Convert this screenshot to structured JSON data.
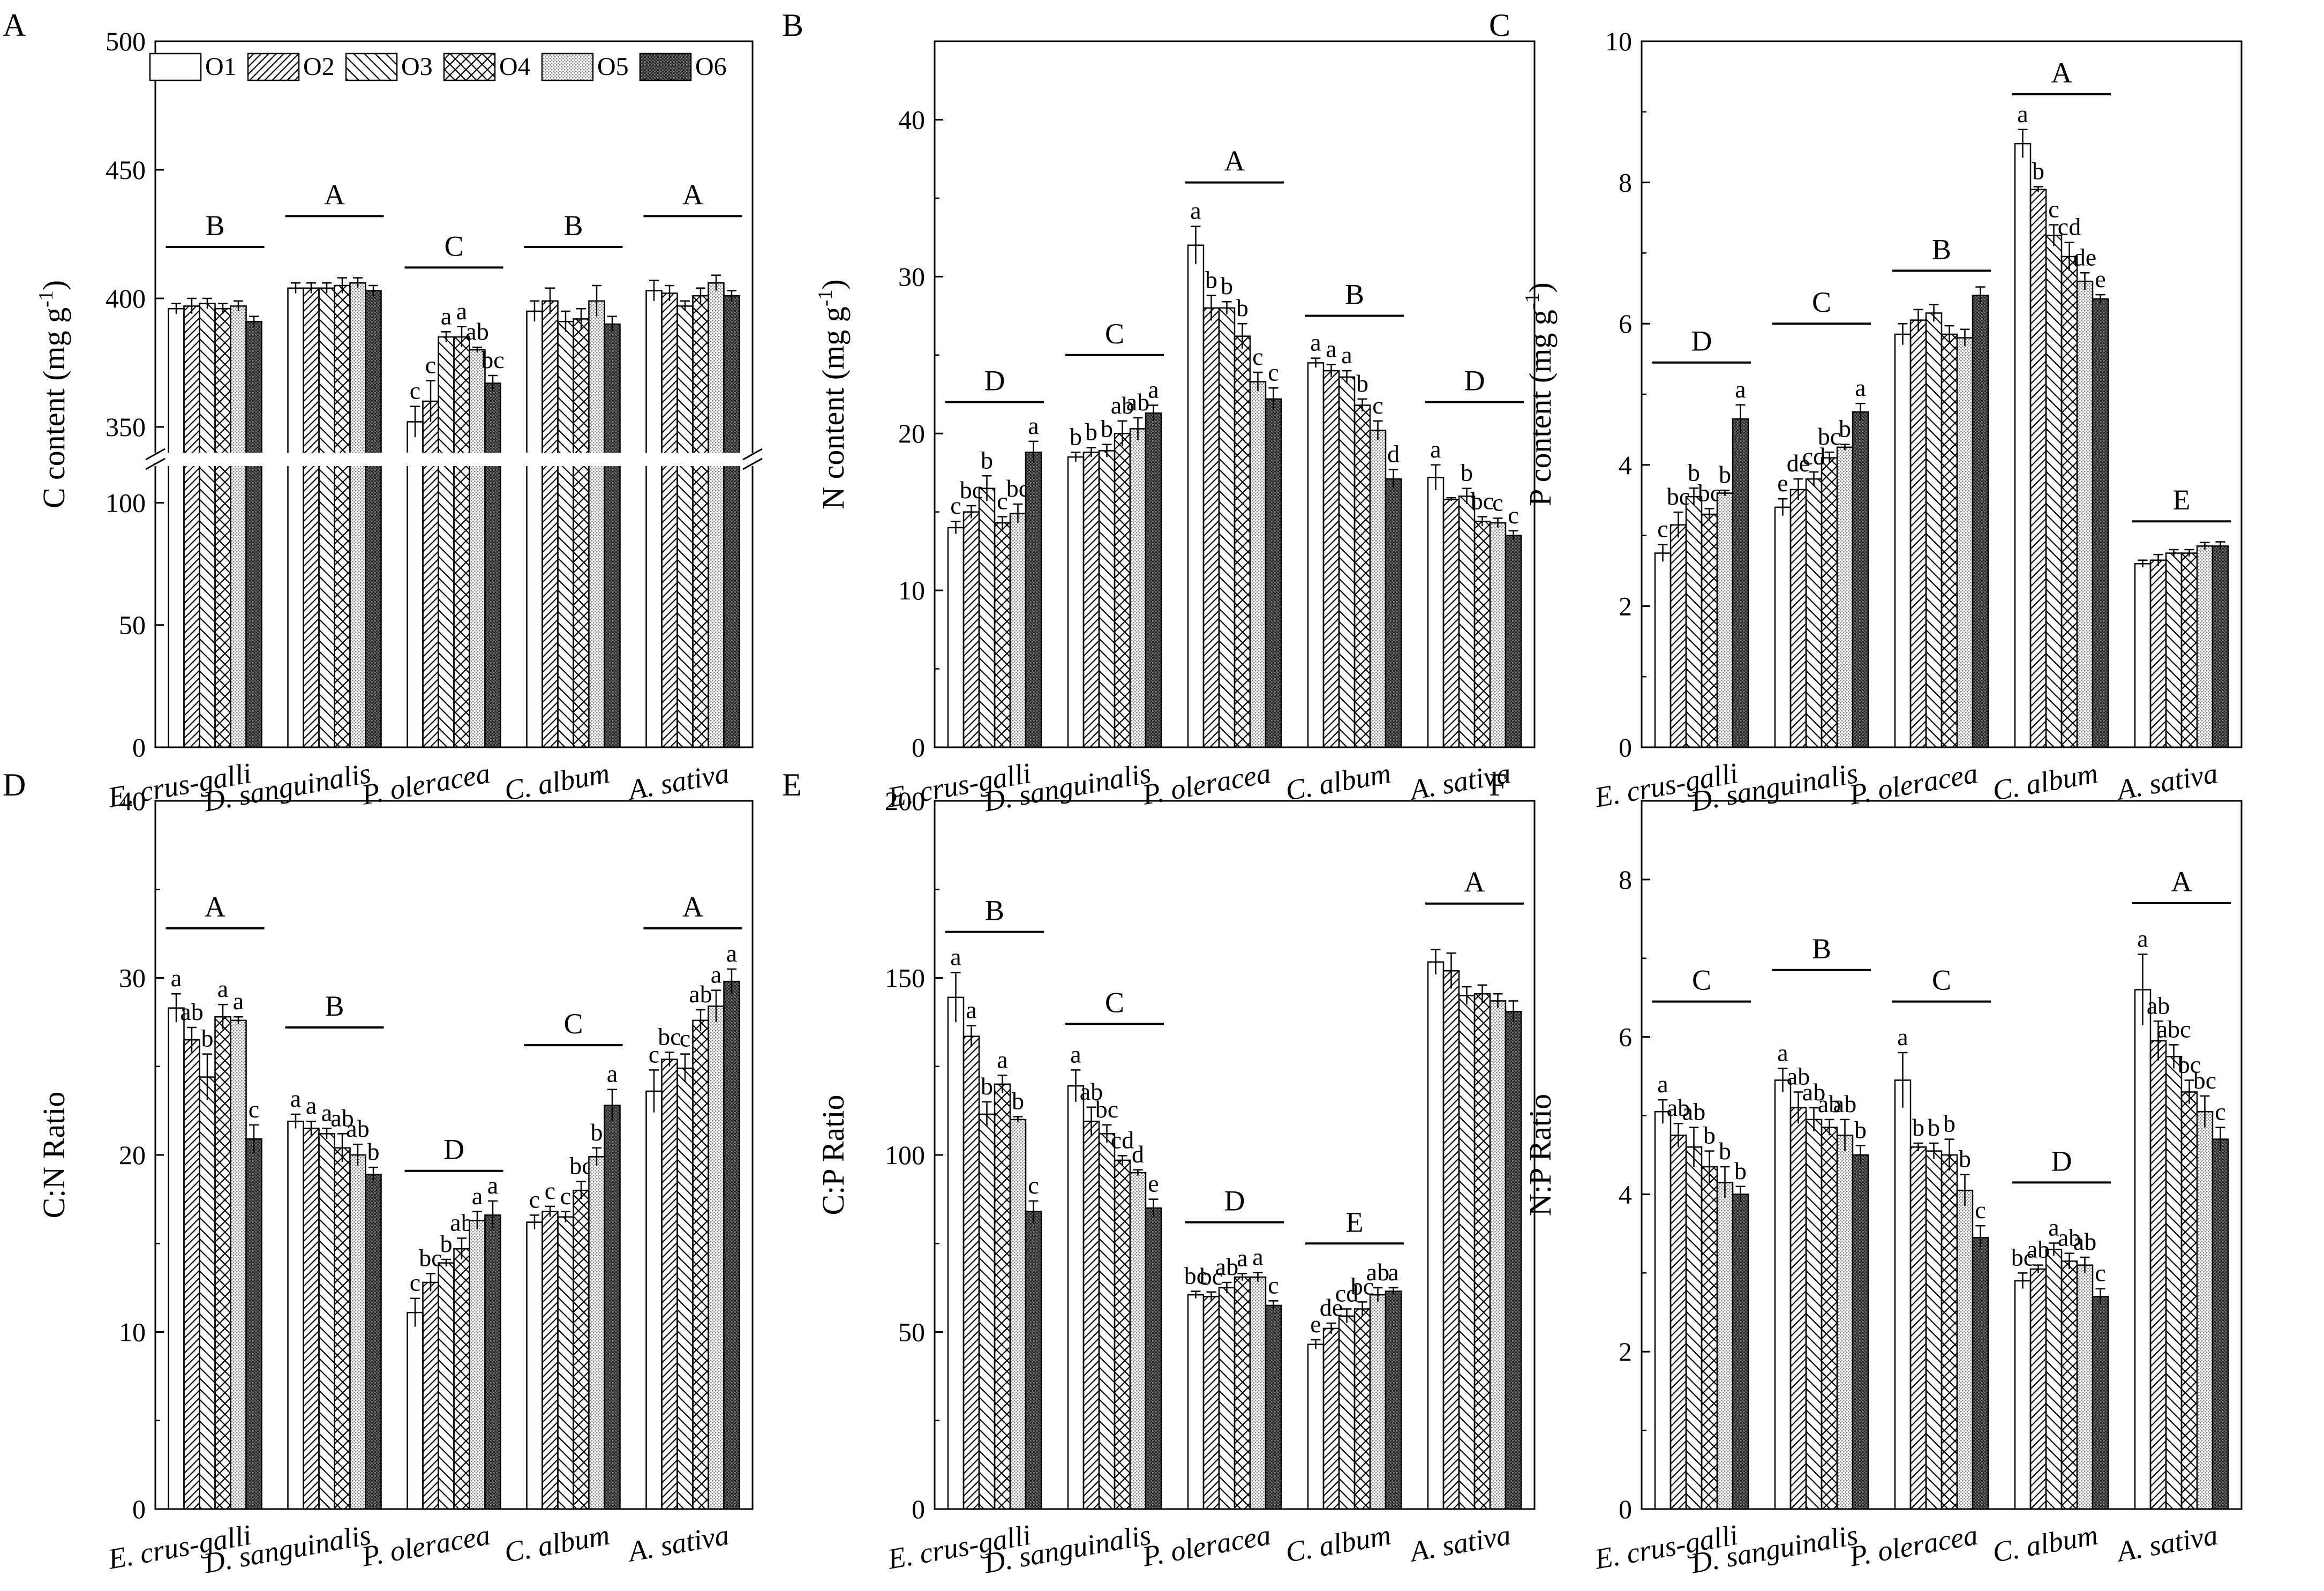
{
  "legend": [
    {
      "name": "O1",
      "pattern": "empty"
    },
    {
      "name": "O2",
      "pattern": "fine-diagonal"
    },
    {
      "name": "O3",
      "pattern": "back-diagonal"
    },
    {
      "name": "O4",
      "pattern": "crosshatch"
    },
    {
      "name": "O5",
      "pattern": "light-dots"
    },
    {
      "name": "O6",
      "pattern": "dark-dense"
    }
  ],
  "chart_data": [
    {
      "type": "bar",
      "panel": "A",
      "ylabel": "C content (mg g-1)",
      "ylabel_main": "C content (mg g",
      "ylabel_sup": "-1",
      "ylabel_end": ")",
      "categories": [
        "E. crus-galli",
        "D. sanguinalis",
        "P. oleracea",
        "C. album",
        "A. sativa"
      ],
      "broken_axis": true,
      "ylim": [
        0,
        500
      ],
      "yticks_lower": [
        0,
        50,
        100
      ],
      "yticks_upper": [
        350,
        400,
        450,
        500
      ],
      "values": [
        [
          396,
          397,
          398,
          396,
          397,
          391
        ],
        [
          404,
          404,
          404,
          405,
          406,
          403
        ],
        [
          352,
          360,
          385,
          385,
          380,
          367
        ],
        [
          395,
          399,
          391,
          392,
          399,
          390
        ],
        [
          403,
          402,
          397,
          401,
          406,
          401
        ]
      ],
      "errors": [
        [
          2,
          3,
          2,
          2,
          2,
          2
        ],
        [
          2,
          2,
          2,
          3,
          2,
          2
        ],
        [
          6,
          8,
          2,
          4,
          1,
          3
        ],
        [
          4,
          5,
          4,
          4,
          6,
          3
        ],
        [
          4,
          3,
          2,
          3,
          3,
          2
        ]
      ],
      "letters": [
        [
          "",
          "",
          "",
          "",
          "",
          ""
        ],
        [
          "",
          "",
          "",
          "",
          "",
          ""
        ],
        [
          "c",
          "c",
          "a",
          "a",
          "ab",
          "bc"
        ],
        [
          "",
          "",
          "",
          "",
          "",
          ""
        ],
        [
          "",
          "",
          "",
          "",
          "",
          ""
        ]
      ],
      "groups": [
        "B",
        "A",
        "C",
        "B",
        "A"
      ],
      "group_y": [
        420,
        432,
        412,
        420,
        432
      ]
    },
    {
      "type": "bar",
      "panel": "B",
      "ylabel": "N content (mg g-1)",
      "ylabel_main": "N content (mg g",
      "ylabel_sup": "-1",
      "ylabel_end": ")",
      "categories": [
        "E. crus-galli",
        "D. sanguinalis",
        "P. oleracea",
        "C. album",
        "A. sativa"
      ],
      "ylim": [
        0,
        45
      ],
      "yticks": [
        0,
        10,
        20,
        30,
        40
      ],
      "values": [
        [
          14.0,
          15.0,
          16.5,
          14.3,
          14.9,
          18.8
        ],
        [
          18.5,
          18.8,
          18.9,
          20.0,
          20.3,
          21.3
        ],
        [
          32.0,
          28.0,
          28.0,
          26.2,
          23.3,
          22.2
        ],
        [
          24.5,
          24.0,
          23.6,
          21.8,
          20.2,
          17.1
        ],
        [
          17.2,
          15.8,
          16.0,
          14.4,
          14.3,
          13.5
        ]
      ],
      "errors": [
        [
          0.4,
          0.4,
          0.8,
          0.4,
          0.6,
          0.7
        ],
        [
          0.3,
          0.3,
          0.4,
          0.8,
          0.7,
          0.5
        ],
        [
          1.2,
          0.8,
          0.4,
          0.8,
          0.6,
          0.7
        ],
        [
          0.3,
          0.4,
          0.4,
          0.4,
          0.6,
          0.6
        ],
        [
          0.8,
          0.1,
          0.5,
          0.3,
          0.3,
          0.3
        ]
      ],
      "letters": [
        [
          "c",
          "bc",
          "b",
          "c",
          "bc",
          "a"
        ],
        [
          "b",
          "b",
          "b",
          "ab",
          "ab",
          "a"
        ],
        [
          "a",
          "b",
          "b",
          "b",
          "c",
          "c"
        ],
        [
          "a",
          "a",
          "a",
          "b",
          "c",
          "d"
        ],
        [
          "a",
          "",
          "b",
          "bc",
          "c",
          "c"
        ]
      ],
      "groups": [
        "D",
        "C",
        "A",
        "B",
        "D"
      ],
      "group_y": [
        22,
        25,
        36,
        27.5,
        22
      ]
    },
    {
      "type": "bar",
      "panel": "C",
      "ylabel": "P content (mg g-1)",
      "ylabel_main": "P content (mg g",
      "ylabel_sup": "-1",
      "ylabel_end": ")",
      "categories": [
        "E. crus-galli",
        "D. sanguinalis",
        "P. oleracea",
        "C. album",
        "A. sativa"
      ],
      "ylim": [
        0,
        10
      ],
      "yticks": [
        0,
        2,
        4,
        6,
        8,
        10
      ],
      "values": [
        [
          2.75,
          3.15,
          3.55,
          3.3,
          3.6,
          4.65
        ],
        [
          3.4,
          3.65,
          3.8,
          4.1,
          4.25,
          4.75
        ],
        [
          5.85,
          6.05,
          6.15,
          5.85,
          5.8,
          6.4
        ],
        [
          8.55,
          7.9,
          7.25,
          6.95,
          6.6,
          6.35
        ],
        [
          2.6,
          2.65,
          2.75,
          2.75,
          2.85,
          2.85
        ]
      ],
      "errors": [
        [
          0.12,
          0.18,
          0.12,
          0.08,
          0.04,
          0.2
        ],
        [
          0.12,
          0.15,
          0.1,
          0.08,
          0.04,
          0.12
        ],
        [
          0.15,
          0.15,
          0.12,
          0.12,
          0.12,
          0.12
        ],
        [
          0.2,
          0.04,
          0.15,
          0.2,
          0.12,
          0.06
        ],
        [
          0.05,
          0.08,
          0.05,
          0.05,
          0.05,
          0.06
        ]
      ],
      "letters": [
        [
          "c",
          "bc",
          "b",
          "bc",
          "b",
          "a"
        ],
        [
          "e",
          "de",
          "cd",
          "bc",
          "b",
          "a"
        ],
        [
          "",
          "",
          "",
          "",
          "",
          ""
        ],
        [
          "a",
          "b",
          "c",
          "cd",
          "de",
          "e"
        ],
        [
          "",
          "",
          "",
          "",
          "",
          ""
        ]
      ],
      "groups": [
        "D",
        "C",
        "B",
        "A",
        "E"
      ],
      "group_y": [
        5.45,
        6.0,
        6.75,
        9.25,
        3.2
      ]
    },
    {
      "type": "bar",
      "panel": "D",
      "ylabel": "C:N Ratio",
      "categories": [
        "E. crus-galli",
        "D. sanguinalis",
        "P. oleracea",
        "C. album",
        "A. sativa"
      ],
      "ylim": [
        0,
        40
      ],
      "yticks": [
        0,
        10,
        20,
        30,
        40
      ],
      "values": [
        [
          28.3,
          26.5,
          24.4,
          27.8,
          27.6,
          20.9
        ],
        [
          21.9,
          21.5,
          21.2,
          20.4,
          20.0,
          18.9
        ],
        [
          11.1,
          12.8,
          13.9,
          14.7,
          16.3,
          16.6
        ],
        [
          16.2,
          16.8,
          16.5,
          18.0,
          19.9,
          22.8
        ],
        [
          23.6,
          25.4,
          24.9,
          27.6,
          28.4,
          29.8
        ]
      ],
      "errors": [
        [
          0.8,
          0.7,
          1.3,
          0.7,
          0.2,
          0.8
        ],
        [
          0.4,
          0.4,
          0.3,
          0.8,
          0.6,
          0.4
        ],
        [
          0.8,
          0.5,
          0.2,
          0.6,
          0.5,
          0.8
        ],
        [
          0.4,
          0.3,
          0.3,
          0.5,
          0.5,
          0.9
        ],
        [
          1.2,
          0.4,
          0.8,
          0.6,
          0.9,
          0.7
        ]
      ],
      "letters": [
        [
          "a",
          "ab",
          "b",
          "a",
          "a",
          "c"
        ],
        [
          "a",
          "a",
          "a",
          "ab",
          "ab",
          "b"
        ],
        [
          "c",
          "bc",
          "b",
          "ab",
          "a",
          "a"
        ],
        [
          "c",
          "c",
          "c",
          "bc",
          "b",
          "a"
        ],
        [
          "c",
          "bc",
          "c",
          "ab",
          "a",
          "a"
        ]
      ],
      "groups": [
        "A",
        "B",
        "D",
        "C",
        "A"
      ],
      "group_y": [
        32.8,
        27.2,
        19.1,
        26.2,
        32.8
      ]
    },
    {
      "type": "bar",
      "panel": "E",
      "ylabel": "C:P Ratio",
      "categories": [
        "E. crus-galli",
        "D. sanguinalis",
        "P. oleracea",
        "C. album",
        "A. sativa"
      ],
      "ylim": [
        0,
        200
      ],
      "yticks": [
        0,
        50,
        100,
        150,
        200
      ],
      "values": [
        [
          144.5,
          133.5,
          111.5,
          120.0,
          110.0,
          84.0
        ],
        [
          119.5,
          109.5,
          106.0,
          98.5,
          95.0,
          85.0
        ],
        [
          60.5,
          60.0,
          62.5,
          65.5,
          65.5,
          57.5
        ],
        [
          46.5,
          51.0,
          54.5,
          56.5,
          60.5,
          61.5
        ],
        [
          154.5,
          152.0,
          145.0,
          145.5,
          143.5,
          140.5
        ]
      ],
      "errors": [
        [
          7.0,
          3.0,
          3.5,
          2.5,
          0.8,
          3.0
        ],
        [
          4.5,
          4.0,
          2.5,
          1.3,
          0.8,
          2.5
        ],
        [
          1.0,
          1.3,
          1.5,
          1.0,
          1.3,
          1.3
        ],
        [
          1.3,
          1.5,
          2.0,
          2.0,
          2.0,
          1.0
        ],
        [
          3.5,
          5.0,
          2.5,
          2.5,
          2.0,
          3.0
        ]
      ],
      "letters": [
        [
          "a",
          "a",
          "b",
          "a",
          "b",
          "c"
        ],
        [
          "a",
          "ab",
          "bc",
          "cd",
          "d",
          "e"
        ],
        [
          "bc",
          "bc",
          "ab",
          "a",
          "a",
          "c"
        ],
        [
          "e",
          "de",
          "cd",
          "bc",
          "ab",
          "a"
        ],
        [
          "",
          "",
          "",
          "",
          "",
          ""
        ]
      ],
      "groups": [
        "B",
        "C",
        "D",
        "E",
        "A"
      ],
      "group_y": [
        163,
        137,
        81,
        75,
        171
      ]
    },
    {
      "type": "bar",
      "panel": "F",
      "ylabel": "N:P Ratio",
      "categories": [
        "E. crus-galli",
        "D. sanguinalis",
        "P. oleracea",
        "C. album",
        "A. sativa"
      ],
      "ylim": [
        0,
        9
      ],
      "yticks": [
        0,
        2,
        4,
        6,
        8
      ],
      "values": [
        [
          5.05,
          4.75,
          4.6,
          4.35,
          4.15,
          4.0
        ],
        [
          5.45,
          5.1,
          4.95,
          4.85,
          4.75,
          4.5
        ],
        [
          5.45,
          4.6,
          4.55,
          4.5,
          4.05,
          3.45
        ],
        [
          2.9,
          3.05,
          3.3,
          3.15,
          3.1,
          2.7
        ],
        [
          6.6,
          5.95,
          5.75,
          5.3,
          5.05,
          4.7
        ]
      ],
      "errors": [
        [
          0.15,
          0.15,
          0.25,
          0.2,
          0.2,
          0.1
        ],
        [
          0.15,
          0.2,
          0.15,
          0.1,
          0.2,
          0.12
        ],
        [
          0.35,
          0.05,
          0.1,
          0.2,
          0.2,
          0.15
        ],
        [
          0.1,
          0.05,
          0.08,
          0.1,
          0.1,
          0.1
        ],
        [
          0.45,
          0.25,
          0.15,
          0.15,
          0.2,
          0.15
        ]
      ],
      "letters": [
        [
          "a",
          "ab",
          "ab",
          "b",
          "b",
          "b"
        ],
        [
          "a",
          "ab",
          "ab",
          "ab",
          "ab",
          "b"
        ],
        [
          "a",
          "b",
          "b",
          "b",
          "b",
          "c"
        ],
        [
          "bc",
          "ab",
          "a",
          "ab",
          "ab",
          "c"
        ],
        [
          "a",
          "ab",
          "abc",
          "bc",
          "bc",
          "c"
        ]
      ],
      "groups": [
        "C",
        "B",
        "C",
        "D",
        "A"
      ],
      "group_y": [
        6.45,
        6.85,
        6.45,
        4.15,
        7.7
      ]
    }
  ]
}
